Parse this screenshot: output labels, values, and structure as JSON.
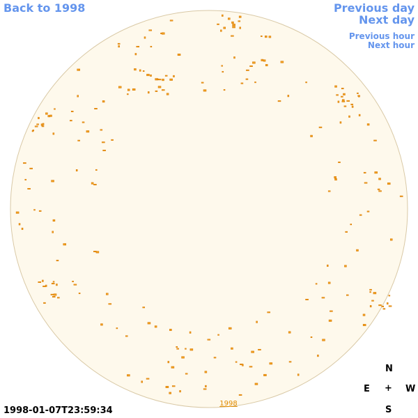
{
  "nav": {
    "back": "Back to 1998",
    "previous_day": "Previous day",
    "next_day": "Next day",
    "previous_hour": "Previous hour",
    "next_hour": "Next hour"
  },
  "timestamp": "1998-01-07T23:59:34",
  "compass": {
    "north": "N",
    "east": "E",
    "center": "+",
    "west": "W",
    "south": "S"
  },
  "disk_label": "1998"
}
